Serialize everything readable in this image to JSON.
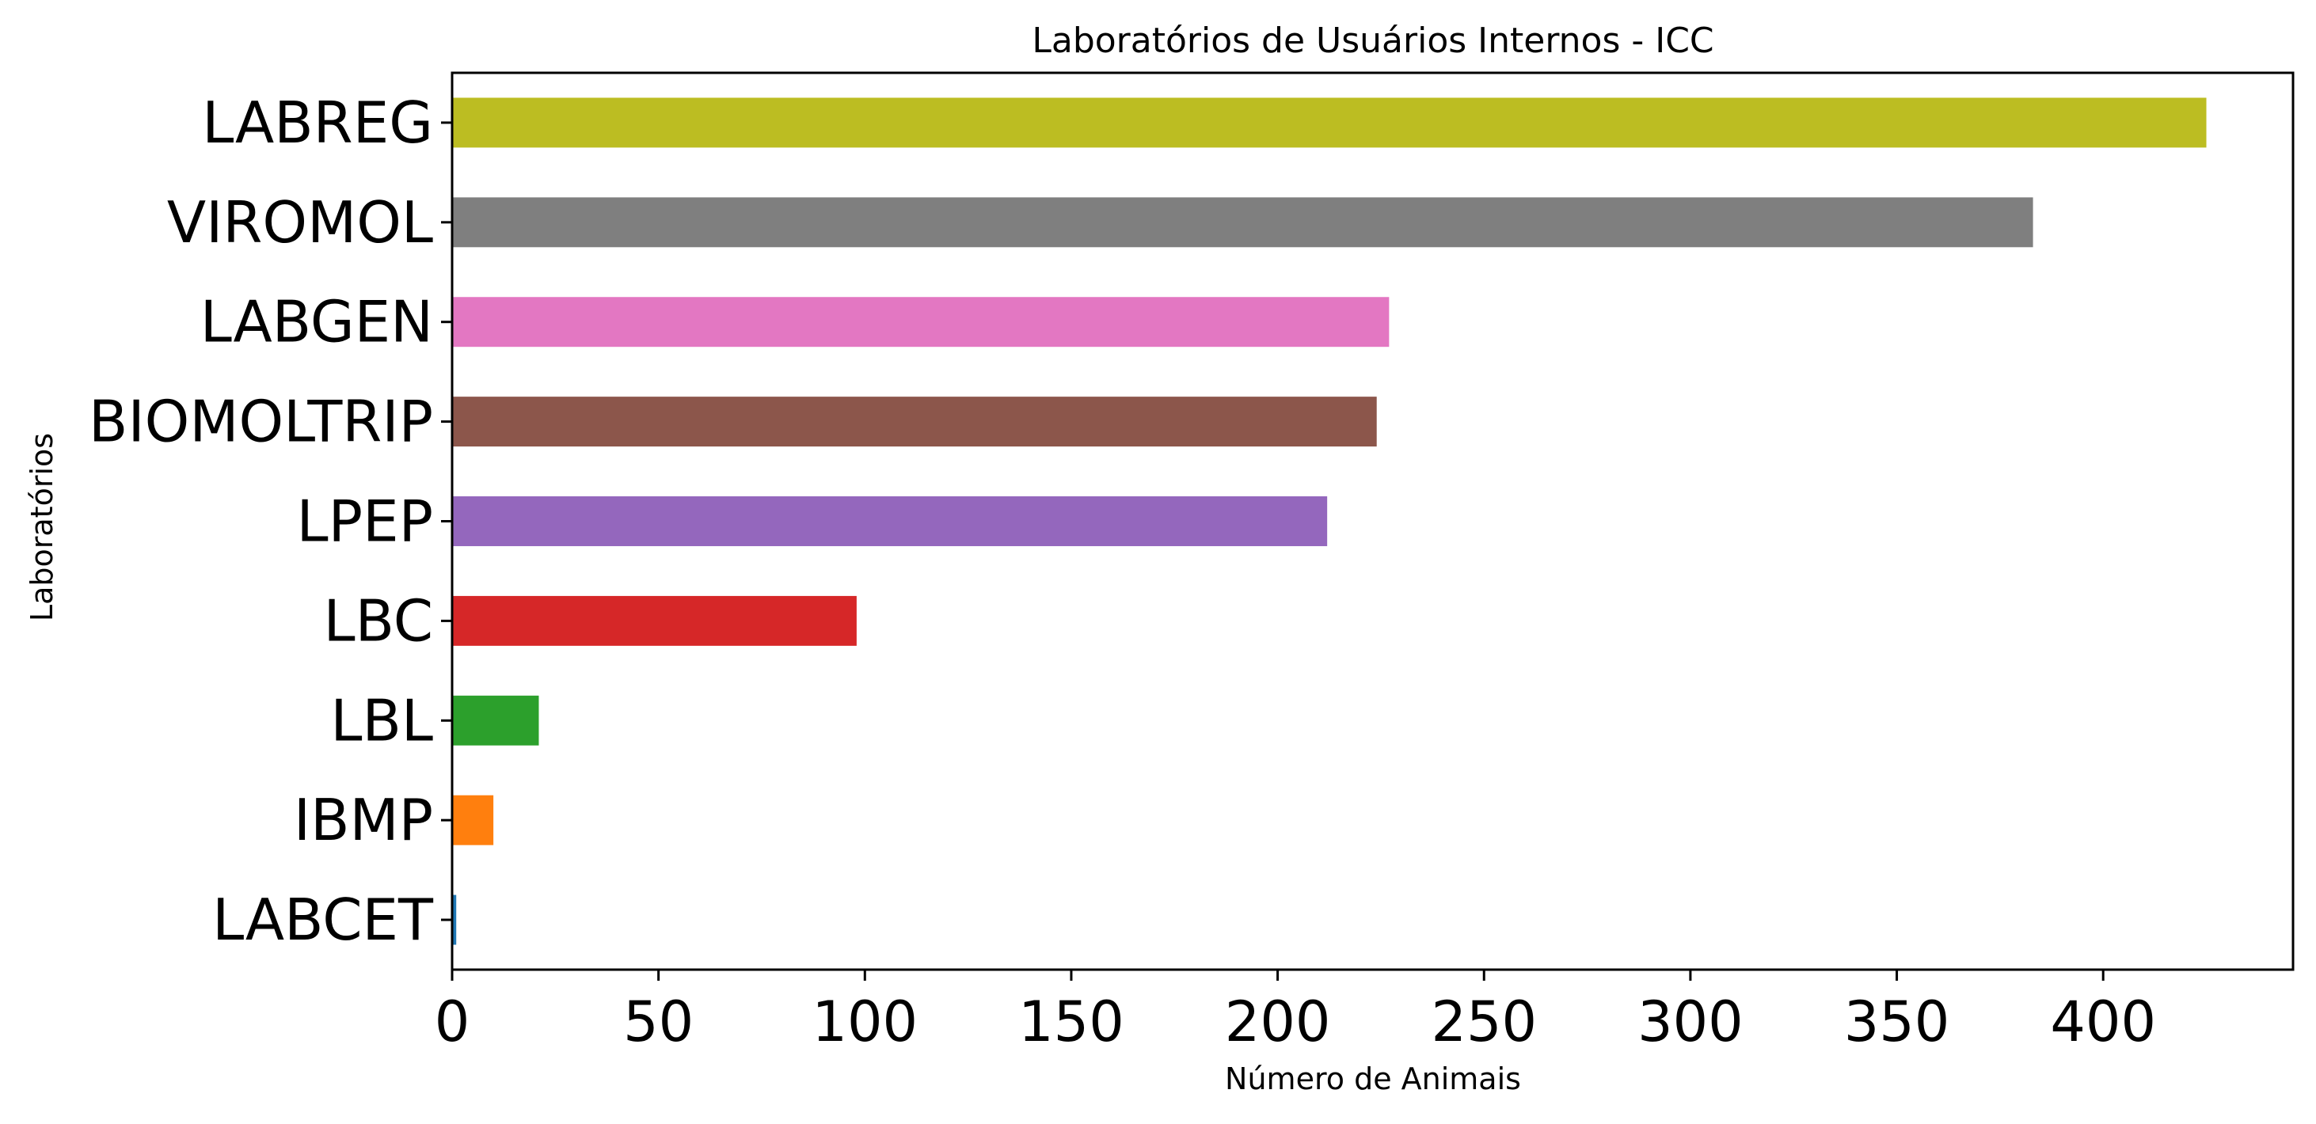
{
  "chart_data": {
    "type": "bar",
    "orientation": "horizontal",
    "title": "Laboratórios de Usuários Internos - ICC",
    "xlabel": "Número de Animais",
    "ylabel": "Laboratórios",
    "categories": [
      "LABCET",
      "IBMP",
      "LBL",
      "LBC",
      "LPEP",
      "BIOMOLTRIP",
      "LABGEN",
      "VIROMOL",
      "LABREG"
    ],
    "values": [
      1,
      10,
      21,
      98,
      212,
      224,
      227,
      383,
      425
    ],
    "colors": [
      "#1f77b4",
      "#ff7f0e",
      "#2ca02c",
      "#d62728",
      "#9467bd",
      "#8c564b",
      "#e377c2",
      "#7f7f7f",
      "#bcbd22"
    ],
    "xlim": [
      0,
      446
    ],
    "xticks": [
      0,
      50,
      100,
      150,
      200,
      250,
      300,
      350,
      400
    ],
    "grid": false,
    "legend": "none"
  }
}
